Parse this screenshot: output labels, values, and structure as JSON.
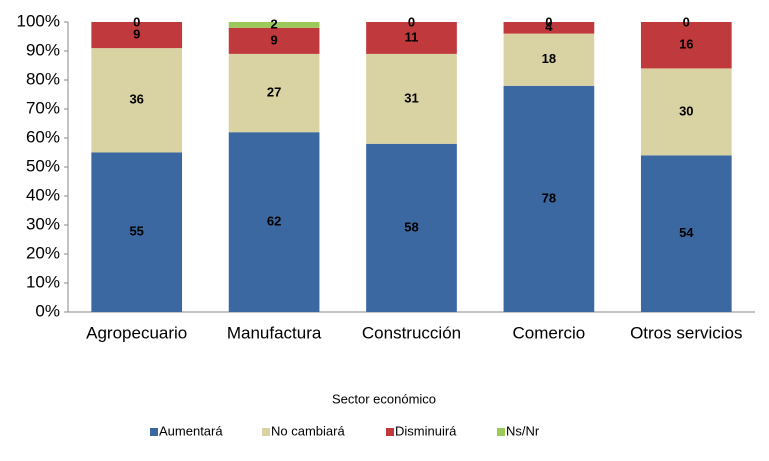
{
  "chart_data": {
    "type": "stacked_bar",
    "x_label": "Sector económico",
    "categories": [
      "Agropecuario",
      "Manufactura",
      "Construcción",
      "Comercio",
      "Otros servicios"
    ],
    "series": [
      {
        "name": "Aumentará",
        "color": "#3b68a1",
        "values": [
          55,
          62,
          58,
          78,
          54
        ]
      },
      {
        "name": "No cambiará",
        "color": "#d9d2a3",
        "values": [
          36,
          27,
          31,
          18,
          30
        ]
      },
      {
        "name": "Disminuirá",
        "color": "#c0393c",
        "values": [
          9,
          9,
          11,
          4,
          16
        ]
      },
      {
        "name": "Ns/Nr",
        "color": "#9bc95c",
        "values": [
          0,
          2,
          0,
          0,
          0
        ]
      }
    ],
    "ylim": [
      0,
      100
    ],
    "yticks": [
      {
        "value": 0,
        "label": "0%"
      },
      {
        "value": 10,
        "label": "10%"
      },
      {
        "value": 20,
        "label": "20%"
      },
      {
        "value": 30,
        "label": "30%"
      },
      {
        "value": 40,
        "label": "40%"
      },
      {
        "value": 50,
        "label": "50%"
      },
      {
        "value": 60,
        "label": "60%"
      },
      {
        "value": 70,
        "label": "70%"
      },
      {
        "value": 80,
        "label": "80%"
      },
      {
        "value": 90,
        "label": "90%"
      },
      {
        "value": 100,
        "label": "100%"
      }
    ],
    "legend": "bottom"
  }
}
